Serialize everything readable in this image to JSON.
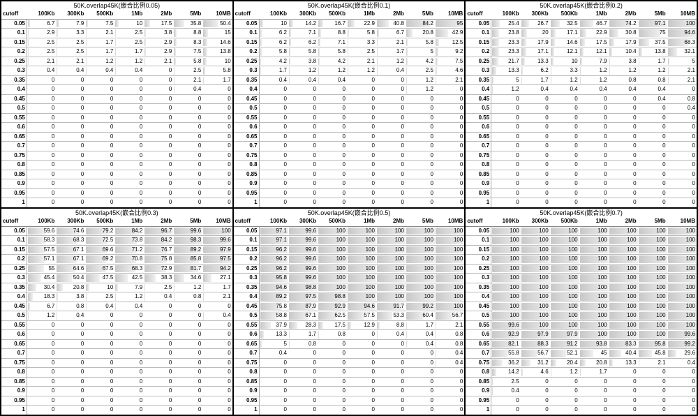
{
  "columns": [
    "cutoff",
    "100Kb",
    "300Kb",
    "500Kb",
    "1Mb",
    "2Mb",
    "5Mb",
    "10MB"
  ],
  "cutoffs": [
    0.05,
    0.1,
    0.15,
    0.2,
    0.25,
    0.3,
    0.35,
    0.4,
    0.45,
    0.5,
    0.55,
    0.6,
    0.65,
    0.7,
    0.75,
    0.8,
    0.85,
    0.9,
    0.95,
    1
  ],
  "col_widths_pct": [
    11,
    12.7,
    12.7,
    12.7,
    12.7,
    12.7,
    12.7,
    12.8
  ],
  "bar_color_start": "#c8c8c8",
  "bar_color_end": "#f0f0f0",
  "panels": [
    {
      "title": "50K.overlap45K(嵌合比例0.05)",
      "rows": [
        [
          6.7,
          7.9,
          7.5,
          10,
          17.5,
          35.8,
          50.4
        ],
        [
          2.9,
          3.3,
          2.1,
          2.5,
          3.8,
          8.8,
          15
        ],
        [
          2.5,
          2.5,
          1.7,
          2.5,
          2.9,
          8.3,
          14.6
        ],
        [
          2.5,
          2.5,
          1.7,
          1.7,
          2.9,
          7.5,
          13.8
        ],
        [
          2.1,
          2.1,
          1.2,
          1.2,
          2.1,
          5.8,
          10
        ],
        [
          0.4,
          0.4,
          0.4,
          0.4,
          0,
          2.5,
          5.8
        ],
        [
          0,
          0,
          0,
          0,
          0,
          2.1,
          1.7
        ],
        [
          0,
          0,
          0,
          0,
          0,
          0.4,
          0
        ],
        [
          0,
          0,
          0,
          0,
          0,
          0,
          0
        ],
        [
          0,
          0,
          0,
          0,
          0,
          0,
          0
        ],
        [
          0,
          0,
          0,
          0,
          0,
          0,
          0
        ],
        [
          0,
          0,
          0,
          0,
          0,
          0,
          0
        ],
        [
          0,
          0,
          0,
          0,
          0,
          0,
          0
        ],
        [
          0,
          0,
          0,
          0,
          0,
          0,
          0
        ],
        [
          0,
          0,
          0,
          0,
          0,
          0,
          0
        ],
        [
          0,
          0,
          0,
          0,
          0,
          0,
          0
        ],
        [
          0,
          0,
          0,
          0,
          0,
          0,
          0
        ],
        [
          0,
          0,
          0,
          0,
          0,
          0,
          0
        ],
        [
          0,
          0,
          0,
          0,
          0,
          0,
          0
        ],
        [
          0,
          0,
          0,
          0,
          0,
          0,
          0
        ]
      ]
    },
    {
      "title": "50K.overlap45K(嵌合比例0.1)",
      "rows": [
        [
          10,
          14.2,
          16.7,
          22.9,
          40.8,
          84.2,
          95
        ],
        [
          6.2,
          7.1,
          8.8,
          5.8,
          6.7,
          20.8,
          42.9
        ],
        [
          6.2,
          6.2,
          7.1,
          3.3,
          2.1,
          5.8,
          12.5
        ],
        [
          5.8,
          5.8,
          5.8,
          2.5,
          1.7,
          5,
          9.2
        ],
        [
          4.2,
          3.8,
          4.2,
          2.1,
          1.2,
          4.2,
          7.5
        ],
        [
          1.7,
          1.2,
          1.2,
          1.2,
          0.4,
          2.5,
          4.6
        ],
        [
          0.4,
          0.4,
          0.4,
          0,
          0,
          1.2,
          2.1
        ],
        [
          0,
          0,
          0,
          0,
          0,
          1.2,
          0
        ],
        [
          0,
          0,
          0,
          0,
          0,
          0,
          0
        ],
        [
          0,
          0,
          0,
          0,
          0,
          0,
          0
        ],
        [
          0,
          0,
          0,
          0,
          0,
          0,
          0
        ],
        [
          0,
          0,
          0,
          0,
          0,
          0,
          0
        ],
        [
          0,
          0,
          0,
          0,
          0,
          0,
          0
        ],
        [
          0,
          0,
          0,
          0,
          0,
          0,
          0
        ],
        [
          0,
          0,
          0,
          0,
          0,
          0,
          0
        ],
        [
          0,
          0,
          0,
          0,
          0,
          0,
          0
        ],
        [
          0,
          0,
          0,
          0,
          0,
          0,
          0
        ],
        [
          0,
          0,
          0,
          0,
          0,
          0,
          0
        ],
        [
          0,
          0,
          0,
          0,
          0,
          0,
          0
        ],
        [
          0,
          0,
          0,
          0,
          0,
          0,
          0
        ]
      ]
    },
    {
      "title": "50K.overlap45K(嵌合比例0.2)",
      "rows": [
        [
          25.4,
          26.7,
          32.5,
          46.7,
          74.2,
          97.1,
          100
        ],
        [
          23.8,
          20,
          17.1,
          22.9,
          30.8,
          75,
          94.6
        ],
        [
          23.3,
          17.9,
          14.6,
          17.5,
          17.9,
          37.5,
          68.3
        ],
        [
          23.3,
          17.1,
          12.1,
          12.1,
          10.4,
          13.8,
          32.1
        ],
        [
          21.7,
          13.3,
          10,
          7.9,
          3.8,
          1.7,
          5
        ],
        [
          13.3,
          6.2,
          3.3,
          1.2,
          1.2,
          1.2,
          2.1
        ],
        [
          5,
          1.7,
          1.2,
          1.2,
          0.8,
          0.8,
          2.1
        ],
        [
          1.2,
          0.4,
          0.4,
          0.4,
          0.4,
          0.4,
          0
        ],
        [
          0,
          0,
          0,
          0,
          0,
          0.4,
          0.8
        ],
        [
          0,
          0,
          0,
          0,
          0,
          0,
          0.4
        ],
        [
          0,
          0,
          0,
          0,
          0,
          0,
          0
        ],
        [
          0,
          0,
          0,
          0,
          0,
          0,
          0
        ],
        [
          0,
          0,
          0,
          0,
          0,
          0,
          0
        ],
        [
          0,
          0,
          0,
          0,
          0,
          0,
          0
        ],
        [
          0,
          0,
          0,
          0,
          0,
          0,
          0
        ],
        [
          0,
          0,
          0,
          0,
          0,
          0,
          0
        ],
        [
          0,
          0,
          0,
          0,
          0,
          0,
          0
        ],
        [
          0,
          0,
          0,
          0,
          0,
          0,
          0
        ],
        [
          0,
          0,
          0,
          0,
          0,
          0,
          0
        ],
        [
          0,
          0,
          0,
          0,
          0,
          0,
          0
        ]
      ]
    },
    {
      "title": "50K.overlap45K(嵌合比例0.3)",
      "rows": [
        [
          59.6,
          74.6,
          79.2,
          84.2,
          96.7,
          99.6,
          100
        ],
        [
          58.3,
          68.3,
          72.5,
          73.8,
          84.2,
          98.3,
          99.6
        ],
        [
          57.5,
          67.1,
          69.6,
          71.2,
          76.7,
          89.2,
          97.9
        ],
        [
          57.1,
          67.1,
          69.2,
          70.8,
          75.8,
          85.8,
          97.5
        ],
        [
          55,
          64.6,
          67.5,
          68.3,
          72.9,
          81.7,
          94.2
        ],
        [
          45.4,
          50.4,
          47.5,
          42.5,
          38.3,
          34.6,
          27.1
        ],
        [
          30.4,
          20.8,
          10,
          7.9,
          2.5,
          1.2,
          1.7
        ],
        [
          18.3,
          3.8,
          2.5,
          1.2,
          0.4,
          0.8,
          2.1
        ],
        [
          6.7,
          0.8,
          0.4,
          0.4,
          0,
          0,
          0
        ],
        [
          1.2,
          0.4,
          0,
          0,
          0,
          0,
          0.4
        ],
        [
          0,
          0,
          0,
          0,
          0,
          0,
          0
        ],
        [
          0,
          0,
          0,
          0,
          0,
          0,
          0
        ],
        [
          0,
          0,
          0,
          0,
          0,
          0,
          0
        ],
        [
          0,
          0,
          0,
          0,
          0,
          0,
          0
        ],
        [
          0,
          0,
          0,
          0,
          0,
          0,
          0
        ],
        [
          0,
          0,
          0,
          0,
          0,
          0,
          0
        ],
        [
          0,
          0,
          0,
          0,
          0,
          0,
          0
        ],
        [
          0,
          0,
          0,
          0,
          0,
          0,
          0
        ],
        [
          0,
          0,
          0,
          0,
          0,
          0,
          0
        ],
        [
          0,
          0,
          0,
          0,
          0,
          0,
          0
        ]
      ]
    },
    {
      "title": "50K.overlap45K(嵌合比例0.5)",
      "rows": [
        [
          97.1,
          99.6,
          100,
          100,
          100,
          100,
          100
        ],
        [
          97.1,
          99.6,
          100,
          100,
          100,
          100,
          100
        ],
        [
          96.2,
          99.6,
          100,
          100,
          100,
          100,
          100
        ],
        [
          96.2,
          99.6,
          100,
          100,
          100,
          100,
          100
        ],
        [
          96.2,
          99.6,
          100,
          100,
          100,
          100,
          100
        ],
        [
          95.8,
          99.6,
          100,
          100,
          100,
          100,
          100
        ],
        [
          94.6,
          98.8,
          100,
          100,
          100,
          100,
          100
        ],
        [
          89.2,
          97.5,
          98.8,
          100,
          100,
          100,
          100
        ],
        [
          75.8,
          87.9,
          92.9,
          94.6,
          91.7,
          99.2,
          100
        ],
        [
          58.8,
          67.1,
          62.5,
          57.5,
          53.3,
          60.4,
          56.7
        ],
        [
          37.9,
          28.3,
          17.5,
          12.9,
          8.8,
          1.7,
          2.1
        ],
        [
          13.3,
          1.7,
          0.8,
          0,
          0.4,
          0.4,
          0.8
        ],
        [
          5,
          0.8,
          0,
          0,
          0,
          0.4,
          0.8
        ],
        [
          0.4,
          0,
          0,
          0,
          0,
          0,
          0.4
        ],
        [
          0,
          0,
          0,
          0,
          0,
          0,
          0.4
        ],
        [
          0,
          0,
          0,
          0,
          0,
          0,
          0
        ],
        [
          0,
          0,
          0,
          0,
          0,
          0,
          0
        ],
        [
          0,
          0,
          0,
          0,
          0,
          0,
          0
        ],
        [
          0,
          0,
          0,
          0,
          0,
          0,
          0
        ],
        [
          0,
          0,
          0,
          0,
          0,
          0,
          0
        ]
      ]
    },
    {
      "title": "50K.overlap45K(嵌合比例0.7)",
      "rows": [
        [
          100,
          100,
          100,
          100,
          100,
          100,
          100
        ],
        [
          100,
          100,
          100,
          100,
          100,
          100,
          100
        ],
        [
          100,
          100,
          100,
          100,
          100,
          100,
          100
        ],
        [
          100,
          100,
          100,
          100,
          100,
          100,
          100
        ],
        [
          100,
          100,
          100,
          100,
          100,
          100,
          100
        ],
        [
          100,
          100,
          100,
          100,
          100,
          100,
          100
        ],
        [
          100,
          100,
          100,
          100,
          100,
          100,
          100
        ],
        [
          100,
          100,
          100,
          100,
          100,
          100,
          100
        ],
        [
          100,
          100,
          100,
          100,
          100,
          100,
          100
        ],
        [
          100,
          100,
          100,
          100,
          100,
          100,
          100
        ],
        [
          99.6,
          100,
          100,
          100,
          100,
          100,
          100
        ],
        [
          92.9,
          97.9,
          97.9,
          100,
          100,
          100,
          99.6
        ],
        [
          82.1,
          88.3,
          91.2,
          93.8,
          83.3,
          95.8,
          99.2
        ],
        [
          55.8,
          56.7,
          52.1,
          45,
          40.4,
          45.8,
          29.6
        ],
        [
          36.2,
          31.2,
          20.4,
          20.8,
          13.3,
          2.1,
          0.4
        ],
        [
          14.2,
          4.6,
          1.2,
          1.7,
          0,
          0,
          0
        ],
        [
          2.5,
          0,
          0,
          0,
          0,
          0,
          0
        ],
        [
          0.4,
          0,
          0,
          0,
          0,
          0,
          0
        ],
        [
          0,
          0,
          0,
          0,
          0,
          0,
          0
        ],
        [
          0,
          0,
          0,
          0,
          0,
          0,
          0
        ]
      ]
    }
  ]
}
